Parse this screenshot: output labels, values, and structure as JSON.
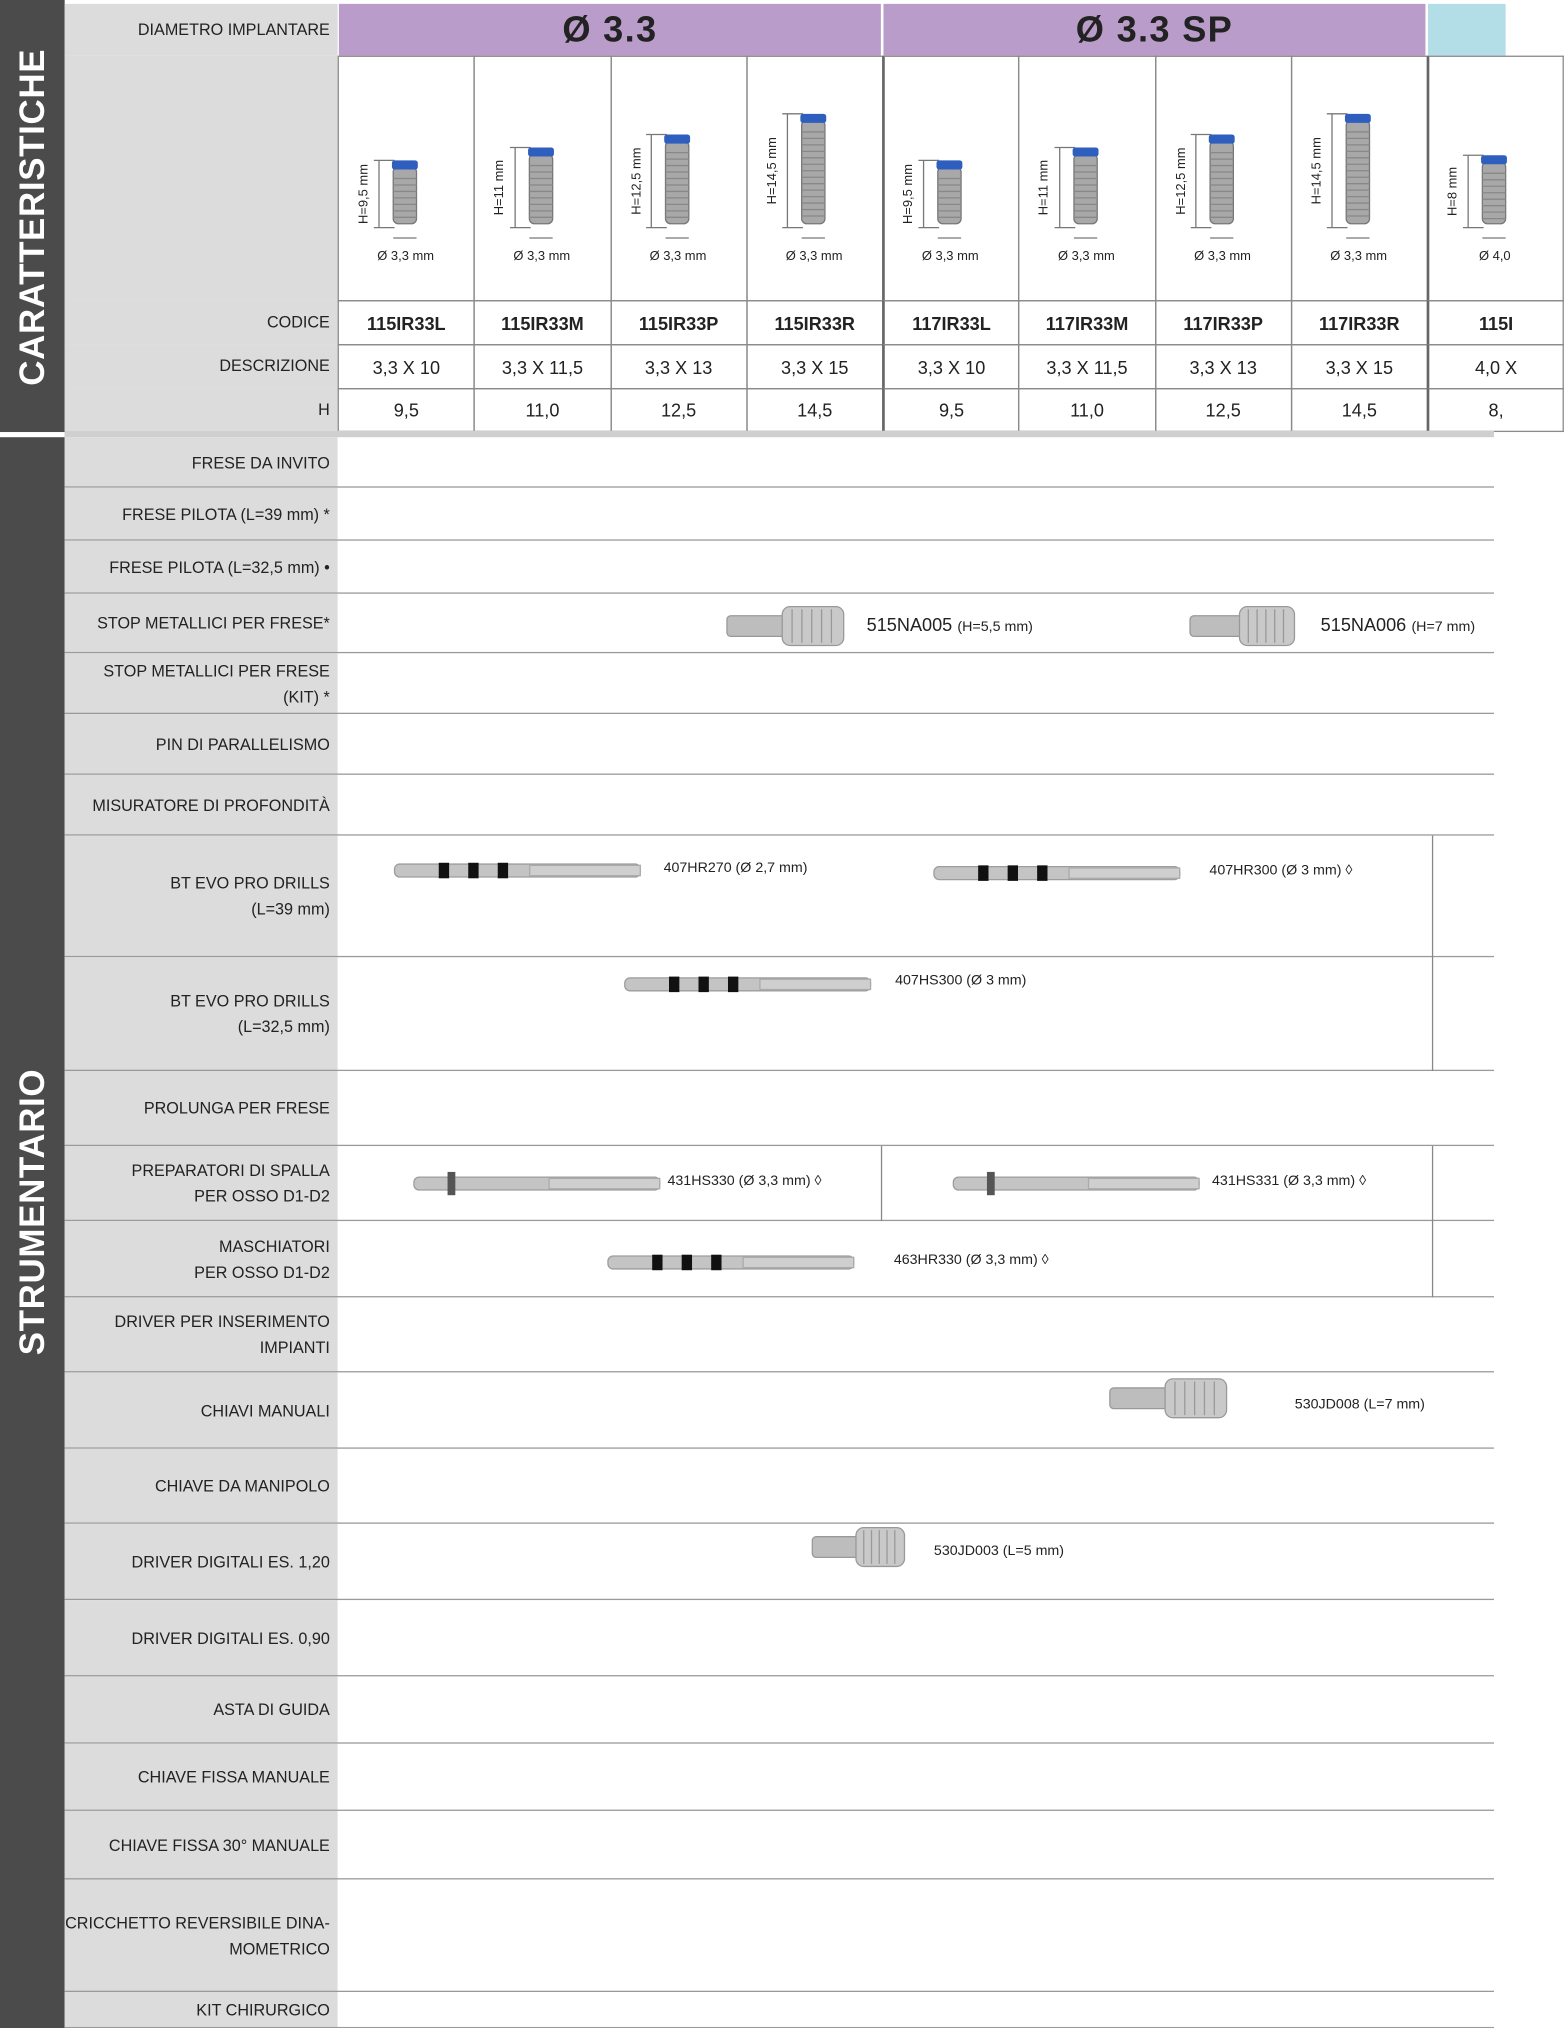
{
  "sidebar": {
    "top": "CARATTERISTICHE",
    "bottom": "STRUMENTARIO"
  },
  "header_label": "DIAMETRO IMPLANTARE",
  "groups": [
    "Ø 3.3",
    "Ø 3.3 SP"
  ],
  "spec_labels": [
    "CODICE",
    "DESCRIZIONE",
    "H"
  ],
  "products": [
    {
      "height": "H=9,5 mm",
      "diameter": "Ø 3,3 mm",
      "code": "115IR33L",
      "description": "3,3 X 10",
      "h": "9,5"
    },
    {
      "height": "H=11 mm",
      "diameter": "Ø 3,3 mm",
      "code": "115IR33M",
      "description": "3,3 X 11,5",
      "h": "11,0"
    },
    {
      "height": "H=12,5 mm",
      "diameter": "Ø 3,3 mm",
      "code": "115IR33P",
      "description": "3,3 X 13",
      "h": "12,5"
    },
    {
      "height": "H=14,5 mm",
      "diameter": "Ø 3,3 mm",
      "code": "115IR33R",
      "description": "3,3 X 15",
      "h": "14,5"
    },
    {
      "height": "H=9,5 mm",
      "diameter": "Ø 3,3 mm",
      "code": "117IR33L",
      "description": "3,3 X 10",
      "h": "9,5"
    },
    {
      "height": "H=11 mm",
      "diameter": "Ø 3,3 mm",
      "code": "117IR33M",
      "description": "3,3 X 11,5",
      "h": "11,0"
    },
    {
      "height": "H=12,5 mm",
      "diameter": "Ø 3,3 mm",
      "code": "117IR33P",
      "description": "3,3 X 13",
      "h": "12,5"
    },
    {
      "height": "H=14,5 mm",
      "diameter": "Ø 3,3 mm",
      "code": "117IR33R",
      "description": "3,3 X 15",
      "h": "14,5"
    },
    {
      "height": "H=8 mm",
      "diameter": "Ø 4,0",
      "code": "115I",
      "description": "4,0 X",
      "h": "8,"
    }
  ],
  "instruments": [
    {
      "lines": [
        "FRESE DA INVITO"
      ]
    },
    {
      "lines": [
        "FRESE PILOTA (L=39 mm) *"
      ]
    },
    {
      "lines": [
        "FRESE PILOTA (L=32,5 mm) •"
      ]
    },
    {
      "lines": [
        "STOP METALLICI PER FRESE*"
      ],
      "items": [
        {
          "text": "515NA005",
          "note": "(H=5,5 mm)"
        },
        {
          "text": "515NA006",
          "note": "(H=7 mm)"
        }
      ]
    },
    {
      "lines": [
        "STOP METALLICI PER FRESE",
        "(KIT) *"
      ]
    },
    {
      "lines": [
        "PIN DI PARALLELISMO"
      ]
    },
    {
      "lines": [
        "MISURATORE DI PROFONDITÀ"
      ]
    },
    {
      "lines": [
        "BT EVO PRO DRILLS",
        "(L=39 mm)"
      ],
      "items": [
        {
          "text": "407HR270 (Ø 2,7 mm)"
        },
        {
          "text": "407HR300 (Ø 3 mm) ◊"
        }
      ]
    },
    {
      "lines": [
        "BT EVO PRO DRILLS",
        "(L=32,5 mm)"
      ],
      "items": [
        {
          "text": "407HS300 (Ø 3 mm)"
        }
      ]
    },
    {
      "lines": [
        "PROLUNGA PER FRESE"
      ]
    },
    {
      "lines": [
        "PREPARATORI DI SPALLA",
        "PER OSSO D1-D2"
      ],
      "items": [
        {
          "text": "431HS330 (Ø 3,3 mm) ◊"
        },
        {
          "text": "431HS331 (Ø 3,3 mm) ◊"
        }
      ]
    },
    {
      "lines": [
        "MASCHIATORI",
        "PER OSSO D1-D2"
      ],
      "items": [
        {
          "text": "463HR330 (Ø 3,3 mm) ◊"
        }
      ]
    },
    {
      "lines": [
        "DRIVER PER INSERIMENTO",
        "IMPIANTI"
      ]
    },
    {
      "lines": [
        "CHIAVI MANUALI"
      ],
      "items": [
        {
          "text": "530JD008 (L=7 mm)"
        }
      ]
    },
    {
      "lines": [
        "CHIAVE DA MANIPOLO"
      ]
    },
    {
      "lines": [
        "DRIVER DIGITALI ES. 1,20"
      ],
      "items": [
        {
          "text": "530JD003 (L=5 mm)"
        }
      ]
    },
    {
      "lines": [
        "DRIVER DIGITALI ES. 0,90"
      ]
    },
    {
      "lines": [
        "ASTA DI GUIDA"
      ]
    },
    {
      "lines": [
        "CHIAVE FISSA MANUALE"
      ]
    },
    {
      "lines": [
        "CHIAVE FISSA 30° MANUALE"
      ]
    },
    {
      "lines": [
        "CRICCHETTO REVERSIBILE DINA-",
        "MOMETRICO"
      ]
    },
    {
      "lines": [
        "KIT CHIRURGICO"
      ]
    }
  ]
}
